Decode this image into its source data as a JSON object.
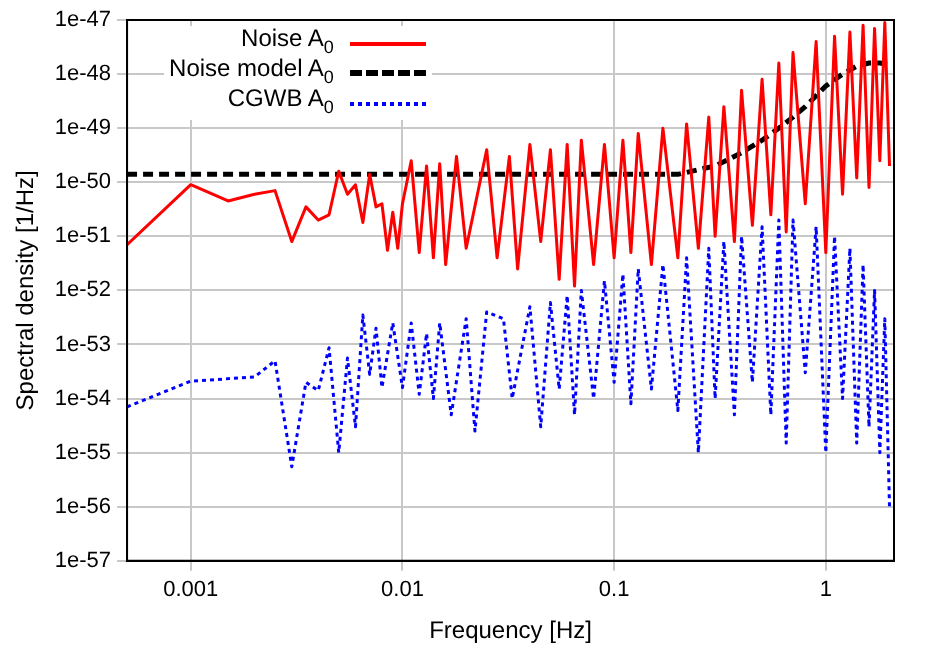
{
  "chart_data": {
    "type": "line",
    "xlabel": "Frequency [Hz]",
    "ylabel": "Spectral density [1/Hz]",
    "log": "xy",
    "grid": true,
    "legend": "top left",
    "marker": "none",
    "xlim": [
      0.0005,
      2.1
    ],
    "xticks": [
      0.001,
      0.01,
      0.1,
      1
    ],
    "ylim": [
      1e-57,
      1e-47
    ],
    "yticks": [
      {
        "value": 1e-57,
        "label": "1e-57"
      },
      {
        "value": 1e-56,
        "label": "1e-56"
      },
      {
        "value": 1e-55,
        "label": "1e-55"
      },
      {
        "value": 1e-54,
        "label": "1e-54"
      },
      {
        "value": 1e-53,
        "label": "1e-53"
      },
      {
        "value": 1e-52,
        "label": "1e-52"
      },
      {
        "value": 1e-51,
        "label": "1e-51"
      },
      {
        "value": 1e-50,
        "label": "1e-50"
      },
      {
        "value": 1e-49,
        "label": "1e-49"
      },
      {
        "value": 1e-48,
        "label": "1e-48"
      },
      {
        "value": 1e-47,
        "label": "1e-47"
      }
    ],
    "series": [
      {
        "name": "Noise A$_{0}$",
        "color": "#ff0000",
        "line_style": "solid",
        "x": [
          0.0005,
          0.001,
          0.0015,
          0.002,
          0.0025,
          0.003,
          0.0035,
          0.004,
          0.0045,
          0.005,
          0.0055,
          0.006,
          0.0065,
          0.007,
          0.0075,
          0.008,
          0.0085,
          0.009,
          0.0095,
          0.01,
          0.011,
          0.012,
          0.013,
          0.014,
          0.015,
          0.016,
          0.018,
          0.02,
          0.025,
          0.028,
          0.032,
          0.035,
          0.04,
          0.045,
          0.05,
          0.055,
          0.06,
          0.065,
          0.07,
          0.08,
          0.09,
          0.1,
          0.11,
          0.12,
          0.13,
          0.15,
          0.17,
          0.2,
          0.22,
          0.25,
          0.28,
          0.3,
          0.33,
          0.37,
          0.4,
          0.45,
          0.5,
          0.55,
          0.6,
          0.65,
          0.7,
          0.8,
          0.9,
          1.0,
          1.1,
          1.2,
          1.3,
          1.4,
          1.5,
          1.6,
          1.7,
          1.8,
          1.9,
          2.0
        ],
        "values": [
          7e-52,
          9e-51,
          4.5e-51,
          6e-51,
          7e-51,
          8e-52,
          3.5e-51,
          2e-51,
          2.5e-51,
          1.6e-50,
          6e-51,
          9e-51,
          1.8e-51,
          1.4e-50,
          3.5e-51,
          4e-51,
          5.5e-52,
          2.8e-51,
          6e-52,
          4e-51,
          2.5e-50,
          5e-52,
          2e-50,
          4e-52,
          2.2e-50,
          3e-52,
          3e-50,
          6e-52,
          4e-50,
          4e-52,
          3e-50,
          2.5e-52,
          5e-50,
          8e-52,
          4e-50,
          1.6e-52,
          5e-50,
          1.2e-52,
          6e-50,
          3e-52,
          5e-50,
          4e-52,
          6e-50,
          5e-52,
          8e-50,
          3e-52,
          1e-49,
          4e-52,
          1.2e-49,
          6e-52,
          1.6e-49,
          1e-51,
          2.5e-49,
          8e-52,
          5e-49,
          1.6e-51,
          8e-49,
          2.5e-51,
          1.6e-48,
          1.2e-51,
          2.5e-48,
          4e-51,
          4e-48,
          5e-52,
          5e-48,
          6e-51,
          6e-48,
          1.2e-50,
          8e-48,
          8e-51,
          7e-48,
          2.5e-50,
          9e-48,
          2e-50
        ]
      },
      {
        "name": "Noise model A$_{0}$",
        "color": "#000000",
        "line_style": "dashed",
        "x": [
          0.0005,
          0.01,
          0.1,
          0.2,
          0.3,
          0.4,
          0.5,
          0.6,
          0.7,
          0.8,
          1.0,
          1.2,
          1.4,
          1.6,
          1.8,
          2.0
        ],
        "values": [
          1.4e-50,
          1.4e-50,
          1.4e-50,
          1.4e-50,
          2e-50,
          3.5e-50,
          6e-50,
          1e-49,
          1.6e-49,
          2.5e-49,
          6e-49,
          1e-48,
          1.4e-48,
          1.6e-48,
          1.6e-48,
          1.5e-48
        ]
      },
      {
        "name": "CGWB A$_{0}$",
        "color": "#0000ff",
        "line_style": "dotted",
        "x": [
          0.0005,
          0.001,
          0.002,
          0.0025,
          0.003,
          0.0035,
          0.004,
          0.0045,
          0.005,
          0.0055,
          0.006,
          0.0065,
          0.007,
          0.0075,
          0.008,
          0.009,
          0.01,
          0.011,
          0.012,
          0.013,
          0.014,
          0.015,
          0.017,
          0.02,
          0.022,
          0.025,
          0.03,
          0.033,
          0.04,
          0.045,
          0.05,
          0.055,
          0.06,
          0.065,
          0.07,
          0.08,
          0.09,
          0.1,
          0.11,
          0.12,
          0.13,
          0.15,
          0.17,
          0.2,
          0.22,
          0.25,
          0.28,
          0.3,
          0.33,
          0.37,
          0.4,
          0.45,
          0.5,
          0.55,
          0.6,
          0.65,
          0.7,
          0.8,
          0.9,
          1.0,
          1.1,
          1.2,
          1.3,
          1.4,
          1.5,
          1.6,
          1.7,
          1.8,
          1.9,
          2.0
        ],
        "values": [
          7e-55,
          2.1e-54,
          2.5e-54,
          5e-54,
          5.5e-56,
          2e-54,
          1.4e-54,
          8.7e-54,
          1e-55,
          5.6e-54,
          3e-55,
          3.5e-53,
          2.8e-54,
          2e-53,
          1.6e-54,
          2.5e-53,
          1.6e-54,
          2.5e-53,
          1.2e-54,
          1.6e-53,
          1e-54,
          2.5e-53,
          5e-55,
          3e-53,
          2.5e-55,
          4e-53,
          3e-53,
          1e-54,
          5e-53,
          3e-55,
          6e-53,
          1.5e-54,
          8e-53,
          5e-55,
          1e-52,
          1e-54,
          1.5e-52,
          2e-54,
          2e-52,
          8e-55,
          2.5e-52,
          1.5e-54,
          3e-52,
          6e-55,
          4e-52,
          1e-55,
          6e-52,
          1e-54,
          8e-52,
          5e-55,
          1e-51,
          2e-54,
          1.5e-51,
          5e-55,
          2e-51,
          1.5e-55,
          2e-51,
          3e-54,
          1.5e-51,
          1e-55,
          1e-51,
          1e-54,
          6e-52,
          1.5e-55,
          3e-52,
          3e-55,
          1e-52,
          1e-55,
          3e-53,
          1e-56
        ]
      }
    ]
  }
}
